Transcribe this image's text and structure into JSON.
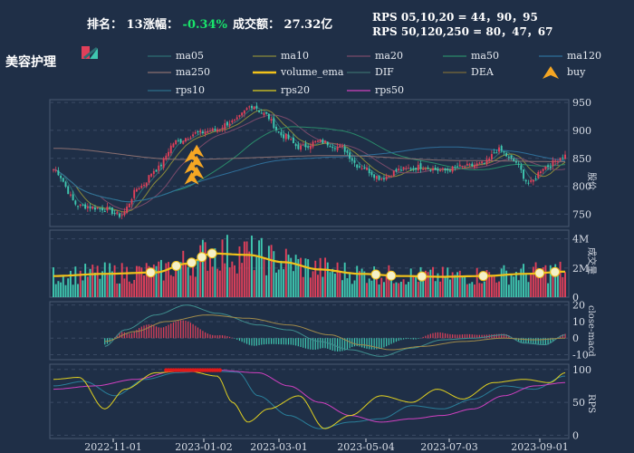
{
  "header": {
    "rank_label": "排名：",
    "rank_value": "13",
    "change_label": "涨幅：",
    "change_value": "-0.34%",
    "turnover_label": "成交额：",
    "turnover_value": "27.32亿",
    "rps_line1": "RPS 05,10,20 = 44，90，95",
    "rps_line2": "RPS 50,120,250 = 80，47，67"
  },
  "sector_name": "美容护理",
  "legend": [
    {
      "label": "ma05",
      "color": "#2c6e73",
      "kind": "line"
    },
    {
      "label": "ma10",
      "color": "#8a8a3a",
      "kind": "line"
    },
    {
      "label": "ma20",
      "color": "#7a4a6a",
      "kind": "line"
    },
    {
      "label": "ma50",
      "color": "#2a8a6a",
      "kind": "line"
    },
    {
      "label": "ma120",
      "color": "#2f6f9a",
      "kind": "line"
    },
    {
      "label": "ma250",
      "color": "#8a6f70",
      "kind": "line"
    },
    {
      "label": "volume_ema",
      "color": "#f2c21a",
      "kind": "thick"
    },
    {
      "label": "DIF",
      "color": "#3a6e6e",
      "kind": "line"
    },
    {
      "label": "DEA",
      "color": "#7a6a3a",
      "kind": "line"
    },
    {
      "label": "buy",
      "color": "#f5a623",
      "kind": "triangle"
    },
    {
      "label": "rps10",
      "color": "#2a6f8a",
      "kind": "line"
    },
    {
      "label": "rps20",
      "color": "#e0d020",
      "kind": "line"
    },
    {
      "label": "rps50",
      "color": "#d040c0",
      "kind": "line"
    }
  ],
  "colors": {
    "up": "#e0405a",
    "down": "#3fc7b0",
    "background": "#1f2f47"
  },
  "chart_data": [
    {
      "type": "candlestick",
      "ylabel": "股价",
      "yticks": [
        750,
        800,
        850,
        900,
        950
      ],
      "ylim": [
        728,
        955
      ],
      "dates": [
        "2022-11-01",
        "2023-01-02",
        "2023-03-01",
        "2023-05-04",
        "2023-07-03",
        "2023-09-01"
      ],
      "close_series": [
        {
          "t": 0,
          "v": 830
        },
        {
          "t": 0.05,
          "v": 765
        },
        {
          "t": 0.1,
          "v": 760
        },
        {
          "t": 0.13,
          "v": 748
        },
        {
          "t": 0.17,
          "v": 800
        },
        {
          "t": 0.2,
          "v": 830
        },
        {
          "t": 0.24,
          "v": 880
        },
        {
          "t": 0.28,
          "v": 895
        },
        {
          "t": 0.31,
          "v": 900
        },
        {
          "t": 0.35,
          "v": 915
        },
        {
          "t": 0.39,
          "v": 945
        },
        {
          "t": 0.41,
          "v": 930
        },
        {
          "t": 0.45,
          "v": 890
        },
        {
          "t": 0.48,
          "v": 870
        },
        {
          "t": 0.52,
          "v": 880
        },
        {
          "t": 0.56,
          "v": 870
        },
        {
          "t": 0.6,
          "v": 835
        },
        {
          "t": 0.64,
          "v": 815
        },
        {
          "t": 0.68,
          "v": 830
        },
        {
          "t": 0.72,
          "v": 835
        },
        {
          "t": 0.76,
          "v": 828
        },
        {
          "t": 0.8,
          "v": 835
        },
        {
          "t": 0.84,
          "v": 840
        },
        {
          "t": 0.87,
          "v": 865
        },
        {
          "t": 0.9,
          "v": 845
        },
        {
          "t": 0.93,
          "v": 805
        },
        {
          "t": 0.96,
          "v": 835
        },
        {
          "t": 1,
          "v": 855
        }
      ],
      "buy_signals": [
        {
          "t": 0.27,
          "v": 850
        },
        {
          "t": 0.28,
          "v": 860
        }
      ]
    },
    {
      "type": "bar",
      "ylabel": "成交量",
      "ytick_labels": [
        "2M",
        "4M"
      ],
      "ytick_values": [
        2,
        4
      ],
      "ylim": [
        0,
        4.6
      ],
      "volume_ema_series": [
        {
          "t": 0,
          "v": 1.45
        },
        {
          "t": 0.1,
          "v": 1.6
        },
        {
          "t": 0.2,
          "v": 1.7
        },
        {
          "t": 0.26,
          "v": 2.3
        },
        {
          "t": 0.31,
          "v": 3.0
        },
        {
          "t": 0.38,
          "v": 2.9
        },
        {
          "t": 0.45,
          "v": 2.4
        },
        {
          "t": 0.52,
          "v": 1.9
        },
        {
          "t": 0.6,
          "v": 1.6
        },
        {
          "t": 0.68,
          "v": 1.45
        },
        {
          "t": 0.76,
          "v": 1.4
        },
        {
          "t": 0.84,
          "v": 1.45
        },
        {
          "t": 0.92,
          "v": 1.6
        },
        {
          "t": 1,
          "v": 1.75
        }
      ],
      "highlight_points_t": [
        0.19,
        0.24,
        0.27,
        0.29,
        0.31,
        0.63,
        0.66,
        0.72,
        0.84,
        0.95,
        0.98
      ]
    },
    {
      "type": "macd",
      "ylabel": "close-macd",
      "yticks": [
        -10,
        0,
        10,
        20
      ],
      "ylim": [
        -13,
        22
      ],
      "dif_series": [
        {
          "t": 0.1,
          "v": -5
        },
        {
          "t": 0.14,
          "v": 5
        },
        {
          "t": 0.2,
          "v": 14
        },
        {
          "t": 0.26,
          "v": 20
        },
        {
          "t": 0.32,
          "v": 15
        },
        {
          "t": 0.4,
          "v": 8
        },
        {
          "t": 0.46,
          "v": 5
        },
        {
          "t": 0.52,
          "v": -2
        },
        {
          "t": 0.58,
          "v": -7
        },
        {
          "t": 0.64,
          "v": -11
        },
        {
          "t": 0.7,
          "v": -6
        },
        {
          "t": 0.76,
          "v": -1
        },
        {
          "t": 0.82,
          "v": 0
        },
        {
          "t": 0.88,
          "v": 2
        },
        {
          "t": 0.92,
          "v": -3
        },
        {
          "t": 0.96,
          "v": -4
        },
        {
          "t": 1,
          "v": 2
        }
      ],
      "dea_series": [
        {
          "t": 0.1,
          "v": -2
        },
        {
          "t": 0.16,
          "v": 4
        },
        {
          "t": 0.22,
          "v": 10
        },
        {
          "t": 0.3,
          "v": 14
        },
        {
          "t": 0.38,
          "v": 12
        },
        {
          "t": 0.46,
          "v": 8
        },
        {
          "t": 0.54,
          "v": 2
        },
        {
          "t": 0.6,
          "v": -4
        },
        {
          "t": 0.66,
          "v": -7
        },
        {
          "t": 0.72,
          "v": -5
        },
        {
          "t": 0.8,
          "v": -2
        },
        {
          "t": 0.88,
          "v": 0
        },
        {
          "t": 0.94,
          "v": -1
        },
        {
          "t": 1,
          "v": 0
        }
      ]
    },
    {
      "type": "line",
      "ylabel": "RPS",
      "yticks": [
        0,
        50,
        100
      ],
      "ylim": [
        -5,
        108
      ],
      "rps10": [
        {
          "t": 0,
          "v": 75
        },
        {
          "t": 0.06,
          "v": 82
        },
        {
          "t": 0.12,
          "v": 60
        },
        {
          "t": 0.18,
          "v": 85
        },
        {
          "t": 0.24,
          "v": 95
        },
        {
          "t": 0.3,
          "v": 98
        },
        {
          "t": 0.36,
          "v": 96
        },
        {
          "t": 0.4,
          "v": 60
        },
        {
          "t": 0.46,
          "v": 30
        },
        {
          "t": 0.52,
          "v": 10
        },
        {
          "t": 0.58,
          "v": 20
        },
        {
          "t": 0.64,
          "v": 25
        },
        {
          "t": 0.7,
          "v": 45
        },
        {
          "t": 0.76,
          "v": 40
        },
        {
          "t": 0.82,
          "v": 55
        },
        {
          "t": 0.88,
          "v": 75
        },
        {
          "t": 0.94,
          "v": 70
        },
        {
          "t": 1,
          "v": 90
        }
      ],
      "rps20": [
        {
          "t": 0,
          "v": 85
        },
        {
          "t": 0.05,
          "v": 88
        },
        {
          "t": 0.1,
          "v": 40
        },
        {
          "t": 0.14,
          "v": 70
        },
        {
          "t": 0.2,
          "v": 95
        },
        {
          "t": 0.26,
          "v": 98
        },
        {
          "t": 0.32,
          "v": 90
        },
        {
          "t": 0.35,
          "v": 50
        },
        {
          "t": 0.38,
          "v": 20
        },
        {
          "t": 0.42,
          "v": 40
        },
        {
          "t": 0.48,
          "v": 60
        },
        {
          "t": 0.53,
          "v": 10
        },
        {
          "t": 0.58,
          "v": 30
        },
        {
          "t": 0.64,
          "v": 60
        },
        {
          "t": 0.7,
          "v": 50
        },
        {
          "t": 0.75,
          "v": 70
        },
        {
          "t": 0.8,
          "v": 55
        },
        {
          "t": 0.86,
          "v": 80
        },
        {
          "t": 0.92,
          "v": 85
        },
        {
          "t": 0.97,
          "v": 80
        },
        {
          "t": 1,
          "v": 95
        }
      ],
      "rps50": [
        {
          "t": 0,
          "v": 70
        },
        {
          "t": 0.08,
          "v": 75
        },
        {
          "t": 0.16,
          "v": 85
        },
        {
          "t": 0.24,
          "v": 98
        },
        {
          "t": 0.32,
          "v": 99
        },
        {
          "t": 0.4,
          "v": 95
        },
        {
          "t": 0.46,
          "v": 75
        },
        {
          "t": 0.52,
          "v": 50
        },
        {
          "t": 0.58,
          "v": 30
        },
        {
          "t": 0.64,
          "v": 20
        },
        {
          "t": 0.7,
          "v": 25
        },
        {
          "t": 0.76,
          "v": 30
        },
        {
          "t": 0.82,
          "v": 40
        },
        {
          "t": 0.88,
          "v": 60
        },
        {
          "t": 0.94,
          "v": 75
        },
        {
          "t": 1,
          "v": 80
        }
      ],
      "highlight_range_t": [
        0.22,
        0.33
      ]
    }
  ]
}
